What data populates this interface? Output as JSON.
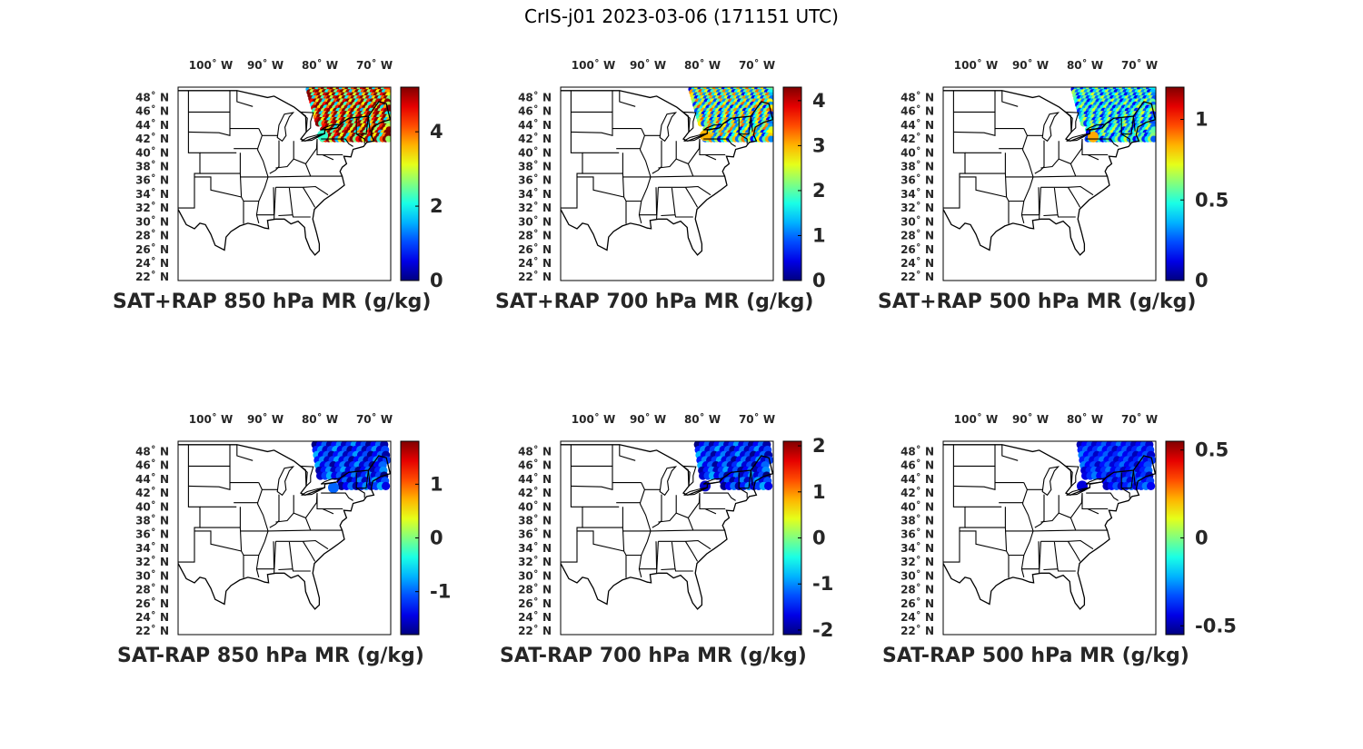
{
  "figure_title": "CrIS-j01 2023-03-06 (171151 UTC)",
  "lon_ticks": [
    "100˚ W",
    "90˚ W",
    "80˚ W",
    "70˚ W"
  ],
  "lat_ticks": [
    "48˚ N",
    "46˚ N",
    "44˚ N",
    "42˚ N",
    "40˚ N",
    "38˚ N",
    "36˚ N",
    "34˚ N",
    "32˚ N",
    "30˚ N",
    "28˚ N",
    "26˚ N",
    "24˚ N",
    "22˚ N"
  ],
  "colormap": "jet",
  "map_extent": {
    "lon": [
      -106,
      -67
    ],
    "lat": [
      21.5,
      49.5
    ]
  },
  "panels": [
    {
      "id": "sat-rap-sum-850",
      "caption": "SAT+RAP 850 hPa MR (g/kg)",
      "clim": [
        0,
        5.2
      ],
      "cb_ticks": [
        {
          "v": 0,
          "label": "0"
        },
        {
          "v": 2,
          "label": "2"
        },
        {
          "v": 4,
          "label": "4"
        }
      ],
      "swath": "dense",
      "lo": 0.3,
      "hi": 1.3,
      "spot": {
        "lon": -79.5,
        "lat": 42.5,
        "v": 2.2
      }
    },
    {
      "id": "sat-rap-sum-700",
      "caption": "SAT+RAP 700 hPa MR (g/kg)",
      "clim": [
        0,
        4.3
      ],
      "cb_ticks": [
        {
          "v": 0,
          "label": "0"
        },
        {
          "v": 1,
          "label": "1"
        },
        {
          "v": 2,
          "label": "2"
        },
        {
          "v": 3,
          "label": "3"
        },
        {
          "v": 4,
          "label": "4"
        }
      ],
      "swath": "dense",
      "lo": 0.1,
      "hi": 0.8,
      "spot": {
        "lon": -79.5,
        "lat": 42.5,
        "v": 3.0
      }
    },
    {
      "id": "sat-rap-sum-500",
      "caption": "SAT+RAP 500 hPa MR (g/kg)",
      "clim": [
        0,
        1.2
      ],
      "cb_ticks": [
        {
          "v": 0,
          "label": "0"
        },
        {
          "v": 0.5,
          "label": "0.5"
        },
        {
          "v": 1,
          "label": "1"
        }
      ],
      "swath": "dense",
      "lo": 0.1,
      "hi": 0.6,
      "spot": {
        "lon": -78.5,
        "lat": 42.3,
        "v": 0.85
      }
    },
    {
      "id": "sat-rap-diff-850",
      "caption": "SAT-RAP 850 hPa MR (g/kg)",
      "clim": [
        -1.8,
        1.8
      ],
      "cb_ticks": [
        {
          "v": -1,
          "label": "-1"
        },
        {
          "v": 0,
          "label": "0"
        },
        {
          "v": 1,
          "label": "1"
        }
      ],
      "swath": "sparse",
      "lo": 0.0,
      "hi": 0.3,
      "spot": {
        "lon": -77.5,
        "lat": 42.8,
        "v": -1.0
      }
    },
    {
      "id": "sat-rap-diff-700",
      "caption": "SAT-RAP 700 hPa MR (g/kg)",
      "clim": [
        -2.1,
        2.1
      ],
      "cb_ticks": [
        {
          "v": -2,
          "label": "-2"
        },
        {
          "v": -1,
          "label": "-1"
        },
        {
          "v": 0,
          "label": "0"
        },
        {
          "v": 1,
          "label": "1"
        },
        {
          "v": 2,
          "label": "2"
        }
      ],
      "swath": "sparse",
      "lo": 0.0,
      "hi": 0.3,
      "spot": {
        "lon": -79.5,
        "lat": 43.0,
        "v": -1.8
      }
    },
    {
      "id": "sat-rap-diff-500",
      "caption": "SAT-RAP 500 hPa MR (g/kg)",
      "clim": [
        -0.55,
        0.55
      ],
      "cb_ticks": [
        {
          "v": -0.5,
          "label": "-0.5"
        },
        {
          "v": 0,
          "label": "0"
        },
        {
          "v": 0.5,
          "label": "0.5"
        }
      ],
      "swath": "sparse",
      "lo": 0.05,
      "hi": 0.25,
      "spot": {
        "lon": -80.5,
        "lat": 43.0,
        "v": -0.45
      }
    }
  ]
}
